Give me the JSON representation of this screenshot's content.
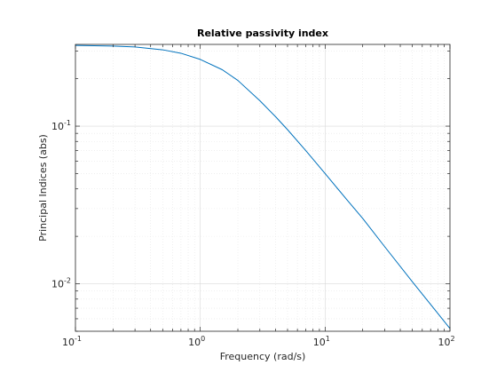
{
  "chart_data": {
    "type": "line",
    "title": "Relative passivity index",
    "xlabel": "Frequency (rad/s)",
    "ylabel": "Principal Indices (abs)",
    "xscale": "log",
    "yscale": "log",
    "xlim": [
      0.1,
      100
    ],
    "ylim": [
      0.005,
      0.33
    ],
    "grid": true,
    "minor_grid": true,
    "x_ticks": [
      {
        "value": 0.1,
        "base": "10",
        "exp": "-1"
      },
      {
        "value": 1,
        "base": "10",
        "exp": "0"
      },
      {
        "value": 10,
        "base": "10",
        "exp": "1"
      },
      {
        "value": 100,
        "base": "10",
        "exp": "2"
      }
    ],
    "y_ticks": [
      {
        "value": 0.01,
        "base": "10",
        "exp": "-2"
      },
      {
        "value": 0.1,
        "base": "10",
        "exp": "-1"
      }
    ],
    "series": [
      {
        "color": "#0072bd",
        "x": [
          0.1,
          0.2,
          0.3,
          0.5,
          0.7,
          1.0,
          1.5,
          2.0,
          3.0,
          4.0,
          5.0,
          7.0,
          10,
          15,
          20,
          30,
          50,
          70,
          100
        ],
        "y": [
          0.325,
          0.322,
          0.318,
          0.305,
          0.29,
          0.265,
          0.228,
          0.195,
          0.145,
          0.115,
          0.095,
          0.07,
          0.05,
          0.034,
          0.026,
          0.0172,
          0.0103,
          0.0074,
          0.0052
        ]
      }
    ]
  }
}
